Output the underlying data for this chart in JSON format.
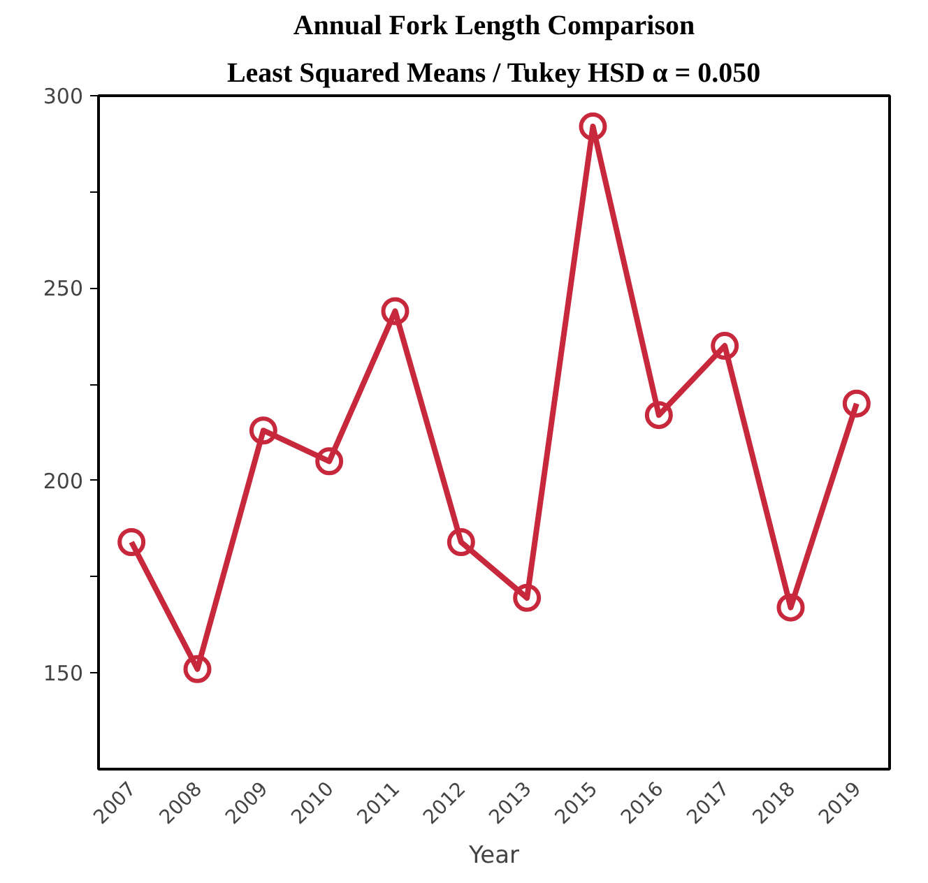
{
  "chart_data": {
    "type": "line",
    "title": "Annual Fork Length Comparison",
    "subtitle": "Least Squared Means / Tukey HSD α = 0.050",
    "xlabel": "Year",
    "categories": [
      "2007",
      "2008",
      "2009",
      "2010",
      "2011",
      "2012",
      "2013",
      "2015",
      "2016",
      "2017",
      "2018",
      "2019"
    ],
    "series": [
      {
        "color": "#c8283c",
        "values": [
          184,
          151,
          213,
          205,
          244,
          184,
          169.5,
          292,
          217,
          235,
          167,
          220
        ]
      }
    ],
    "ylim": [
      125,
      300
    ],
    "yticks": [
      150,
      {
        "value": 175,
        "label": null
      },
      200,
      {
        "value": 225,
        "label": null
      },
      250,
      {
        "value": 275,
        "label": null
      },
      300
    ],
    "grid": false,
    "marker": "circle",
    "line_style": "solid"
  }
}
